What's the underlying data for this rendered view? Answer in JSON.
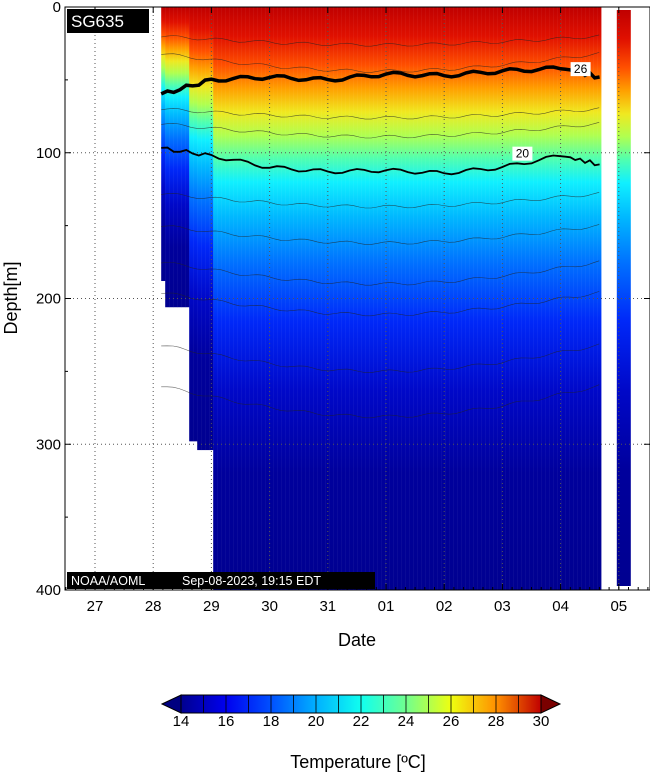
{
  "badge": "SG635",
  "footer": {
    "source": "NOAA/AOML",
    "timestamp": "Sep-08-2023, 19:15 EDT"
  },
  "chart_data": {
    "type": "heatmap",
    "xlabel": "Date",
    "ylabel": "Depth[m]",
    "x_ticks": [
      "27",
      "28",
      "29",
      "30",
      "31",
      "01",
      "02",
      "03",
      "04",
      "05"
    ],
    "y_ticks": [
      0,
      100,
      200,
      300,
      400
    ],
    "ylim": [
      400,
      0
    ],
    "grid": true,
    "colorbar": {
      "label": "Temperature [ºC]",
      "ticks": [
        14,
        16,
        18,
        20,
        22,
        24,
        26,
        28,
        30
      ],
      "range": [
        14,
        30
      ]
    },
    "contour_labels": [
      {
        "value": "26",
        "date": "04",
        "depth": 44
      },
      {
        "value": "20",
        "date": "03",
        "depth": 102
      }
    ],
    "bold_contours": [
      26,
      20
    ],
    "profile_start_date": "28",
    "profile_end_date": "05",
    "series": [
      {
        "name": "26",
        "depth_at_dates": {
          "28": 60,
          "29": 50,
          "30": 48,
          "31": 50,
          "01": 46,
          "02": 47,
          "03": 44,
          "04": 42,
          "05": 38
        }
      },
      {
        "name": "20",
        "depth_at_dates": {
          "28": 97,
          "29": 102,
          "30": 110,
          "31": 113,
          "01": 112,
          "02": 114,
          "03": 110,
          "04": 102,
          "05": 104
        }
      }
    ]
  }
}
